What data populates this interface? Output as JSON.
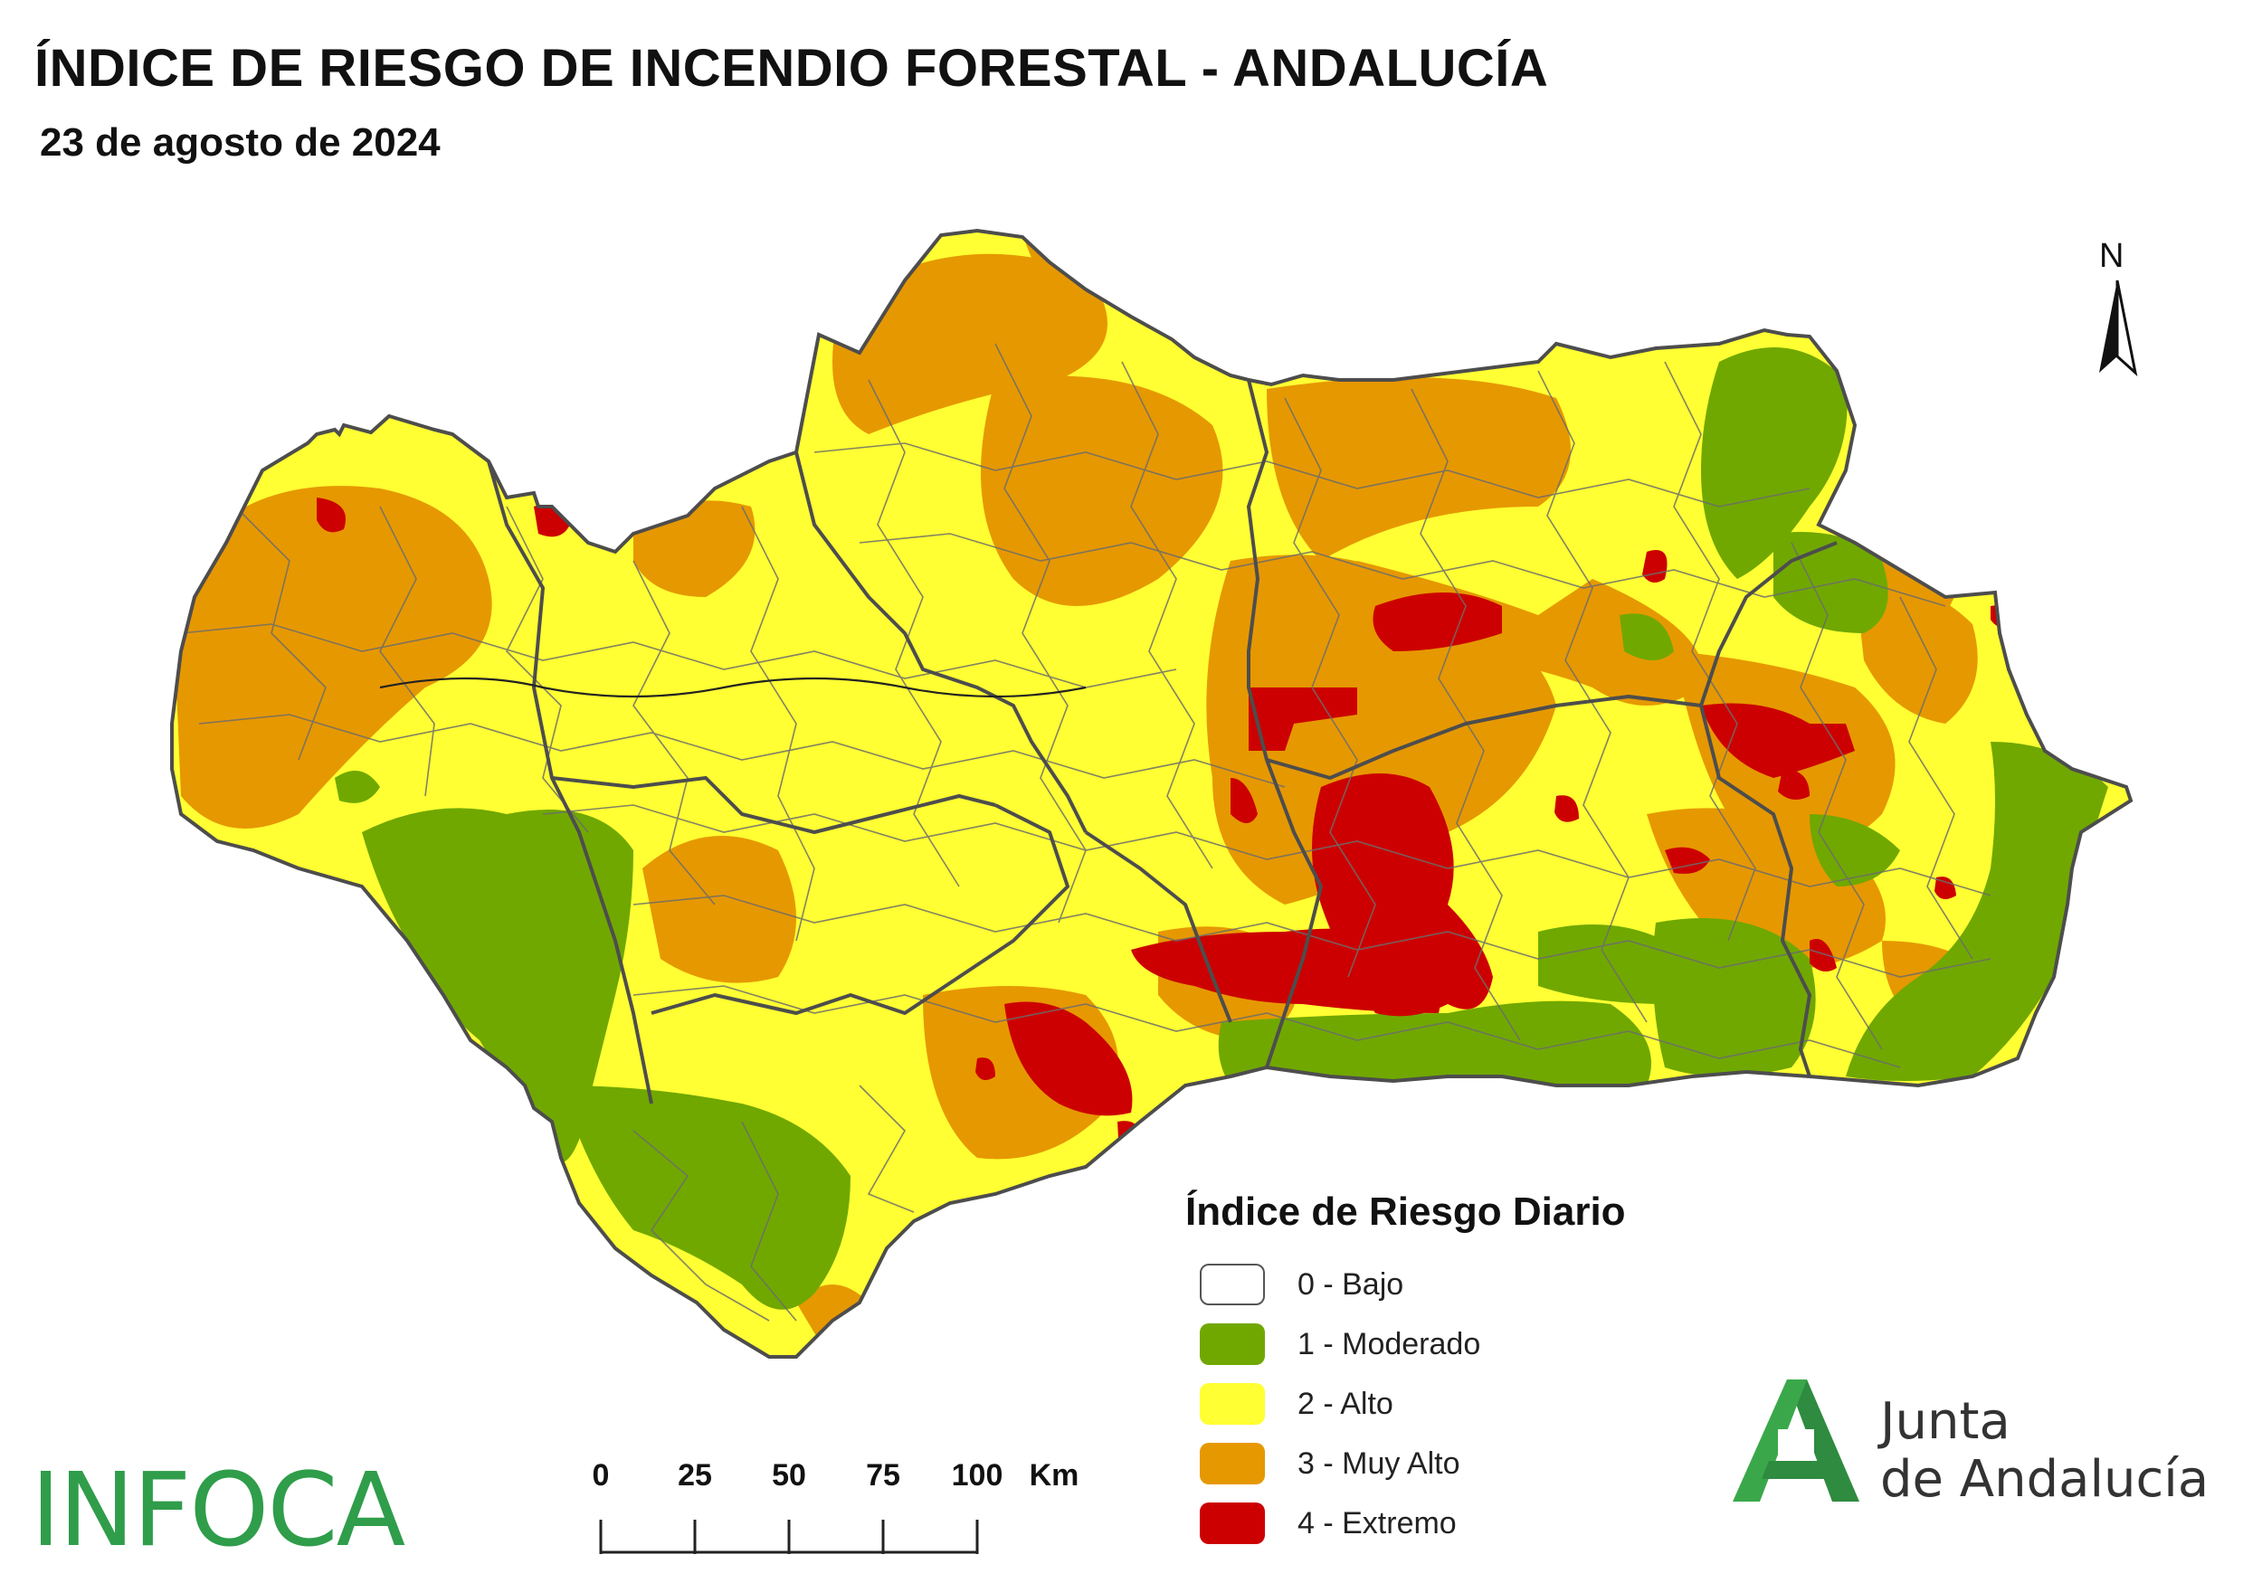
{
  "header": {
    "title": "ÍNDICE DE RIESGO DE INCENDIO FORESTAL - ANDALUCÍA",
    "date": "23 de agosto de 2024"
  },
  "north_arrow": {
    "label": "N",
    "icon": "north-arrow-icon"
  },
  "legend": {
    "title": "Índice de Riesgo Diario",
    "items": [
      {
        "label": "0 - Bajo",
        "color": "#ffffff"
      },
      {
        "label": "1 - Moderado",
        "color": "#70a800"
      },
      {
        "label": "2 - Alto",
        "color": "#ffff33"
      },
      {
        "label": "3 - Muy Alto",
        "color": "#e69800"
      },
      {
        "label": "4 - Extremo",
        "color": "#cc0000"
      }
    ]
  },
  "scale_bar": {
    "ticks": [
      "0",
      "25",
      "50",
      "75",
      "100"
    ],
    "unit": "Km"
  },
  "logos": {
    "infoca": "INFOCA",
    "junta_line1": "Junta",
    "junta_line2": "de Andalucía",
    "junta_color": "#2e8b3f"
  }
}
